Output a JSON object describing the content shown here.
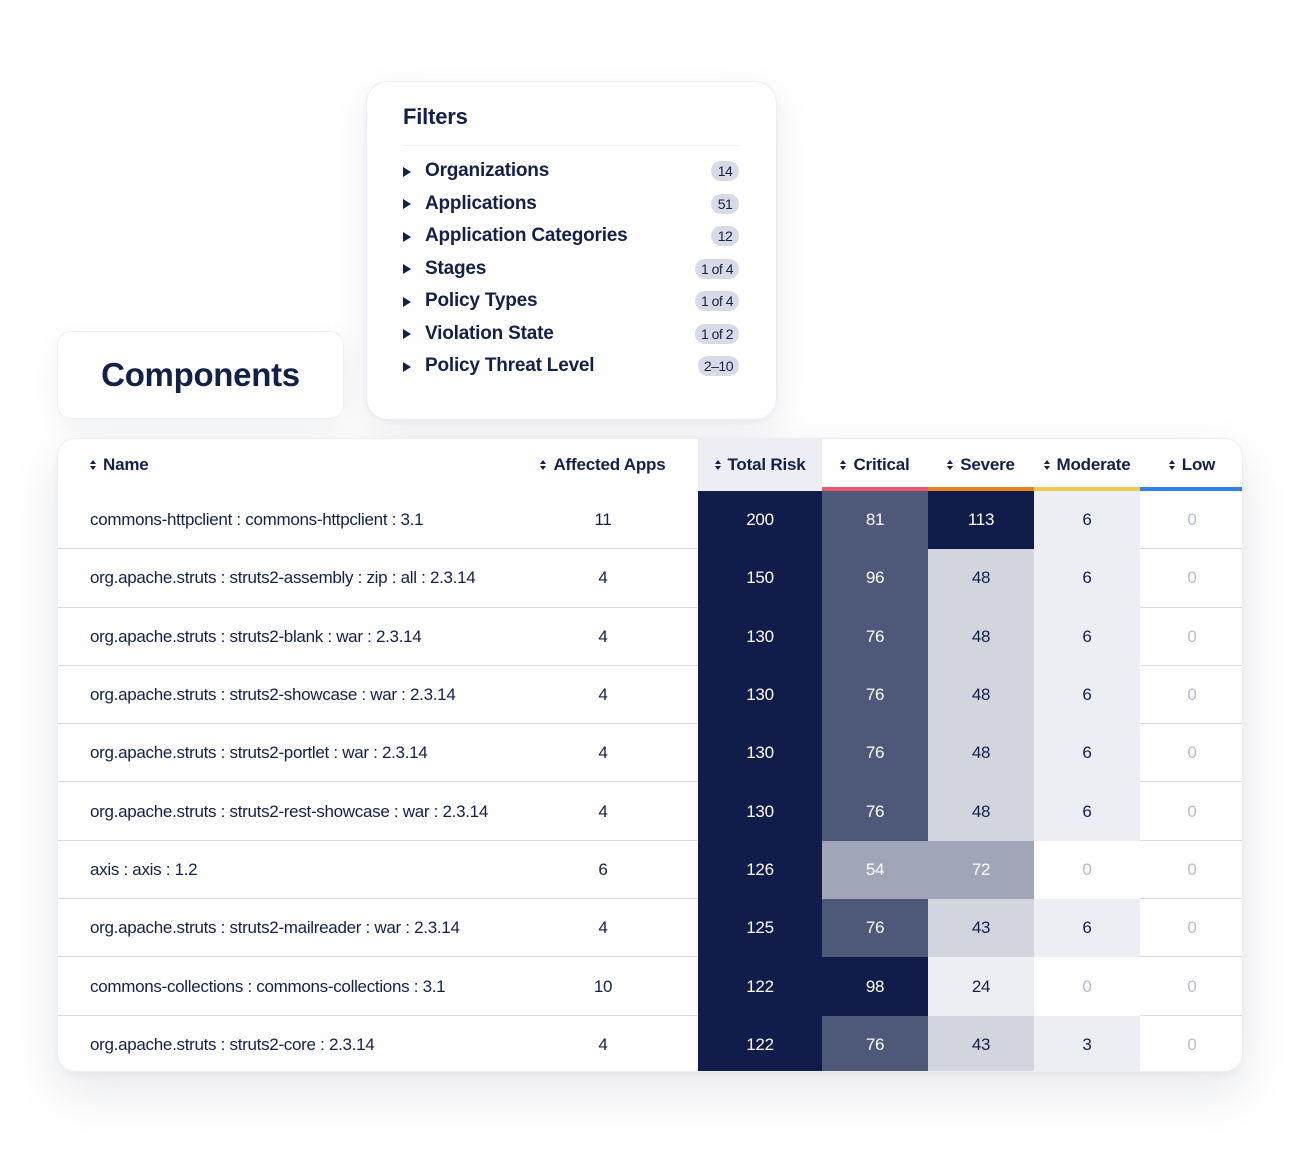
{
  "filters": {
    "title": "Filters",
    "items": [
      {
        "label": "Organizations",
        "badge": "14"
      },
      {
        "label": "Applications",
        "badge": "51"
      },
      {
        "label": "Application Categories",
        "badge": "12"
      },
      {
        "label": "Stages",
        "badge": "1 of 4"
      },
      {
        "label": "Policy Types",
        "badge": "1 of 4"
      },
      {
        "label": "Violation State",
        "badge": "1 of 2"
      },
      {
        "label": "Policy Threat Level",
        "badge": "2–10"
      }
    ]
  },
  "components": {
    "title": "Components"
  },
  "table": {
    "columns": [
      {
        "key": "name",
        "label": "Name"
      },
      {
        "key": "apps",
        "label": "Affected Apps"
      },
      {
        "key": "total",
        "label": "Total Risk"
      },
      {
        "key": "critical",
        "label": "Critical",
        "bar_color": "#ec5b6a"
      },
      {
        "key": "severe",
        "label": "Severe",
        "bar_color": "#e6821f"
      },
      {
        "key": "moderate",
        "label": "Moderate",
        "bar_color": "#f2c94c"
      },
      {
        "key": "low",
        "label": "Low",
        "bar_color": "#2f80ed"
      }
    ],
    "rows": [
      {
        "name": "commons-httpclient : commons-httpclient : 3.1",
        "apps": "11",
        "total": "200",
        "critical": "81",
        "severe": "113",
        "moderate": "6",
        "low": "0"
      },
      {
        "name": "org.apache.struts : struts2-assembly : zip : all : 2.3.14",
        "apps": "4",
        "total": "150",
        "critical": "96",
        "severe": "48",
        "moderate": "6",
        "low": "0"
      },
      {
        "name": "org.apache.struts : struts2-blank : war : 2.3.14",
        "apps": "4",
        "total": "130",
        "critical": "76",
        "severe": "48",
        "moderate": "6",
        "low": "0"
      },
      {
        "name": "org.apache.struts : struts2-showcase : war : 2.3.14",
        "apps": "4",
        "total": "130",
        "critical": "76",
        "severe": "48",
        "moderate": "6",
        "low": "0"
      },
      {
        "name": "org.apache.struts : struts2-portlet : war : 2.3.14",
        "apps": "4",
        "total": "130",
        "critical": "76",
        "severe": "48",
        "moderate": "6",
        "low": "0"
      },
      {
        "name": "org.apache.struts : struts2-rest-showcase : war : 2.3.14",
        "apps": "4",
        "total": "130",
        "critical": "76",
        "severe": "48",
        "moderate": "6",
        "low": "0"
      },
      {
        "name": "axis : axis : 1.2",
        "apps": "6",
        "total": "126",
        "critical": "54",
        "severe": "72",
        "moderate": "0",
        "low": "0"
      },
      {
        "name": "org.apache.struts : struts2-mailreader : war : 2.3.14",
        "apps": "4",
        "total": "125",
        "critical": "76",
        "severe": "43",
        "moderate": "6",
        "low": "0"
      },
      {
        "name": "commons-collections : commons-collections : 3.1",
        "apps": "10",
        "total": "122",
        "critical": "98",
        "severe": "24",
        "moderate": "0",
        "low": "0"
      },
      {
        "name": "org.apache.struts : struts2-core : 2.3.14",
        "apps": "4",
        "total": "122",
        "critical": "76",
        "severe": "43",
        "moderate": "3",
        "low": "0"
      }
    ]
  }
}
